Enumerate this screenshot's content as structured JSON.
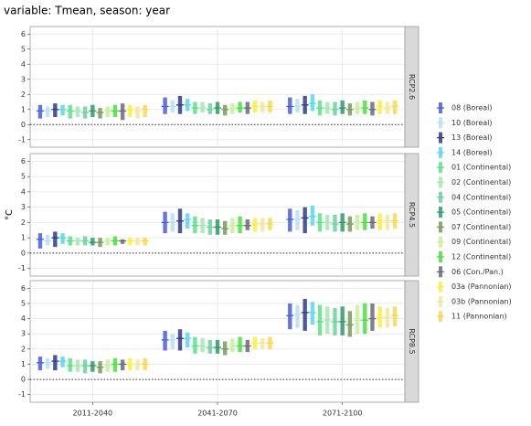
{
  "chart_data": {
    "type": "range",
    "title": "variable: Tmean, season: year",
    "y_label": "°C",
    "categories": [
      "2011-2040",
      "2041-2070",
      "2071-2100"
    ],
    "facets": [
      "RCP2.6",
      "RCP4.5",
      "RCP8.5"
    ],
    "ylim": [
      -1.5,
      6.5
    ],
    "yticks": [
      -1,
      0,
      1,
      2,
      3,
      4,
      5,
      6
    ],
    "hline": 0,
    "grid": true,
    "series": [
      {
        "name": "08 (Boreal)",
        "color": "#4a5fd6",
        "values": [
          [
            [
              0.4,
              1.3,
              0.9
            ],
            [
              0.7,
              1.8,
              1.2
            ],
            [
              0.7,
              1.8,
              1.2
            ]
          ],
          [
            [
              0.3,
              1.3,
              0.9
            ],
            [
              1.3,
              2.7,
              2.0
            ],
            [
              1.4,
              2.9,
              2.2
            ]
          ],
          [
            [
              0.6,
              1.5,
              1.1
            ],
            [
              1.9,
              3.2,
              2.6
            ],
            [
              3.3,
              5.0,
              4.2
            ]
          ]
        ]
      },
      {
        "name": "10 (Boreal)",
        "color": "#b8dff0",
        "values": [
          [
            [
              0.5,
              1.2,
              0.9
            ],
            [
              0.8,
              1.6,
              1.2
            ],
            [
              0.8,
              1.7,
              1.2
            ]
          ],
          [
            [
              0.5,
              1.2,
              0.8
            ],
            [
              1.4,
              2.6,
              2.0
            ],
            [
              1.5,
              2.8,
              2.2
            ]
          ],
          [
            [
              0.7,
              1.4,
              1.1
            ],
            [
              2.0,
              3.0,
              2.6
            ],
            [
              3.4,
              4.9,
              4.3
            ]
          ]
        ]
      },
      {
        "name": "13 (Boreal)",
        "color": "#303a8a",
        "values": [
          [
            [
              0.5,
              1.4,
              1.0
            ],
            [
              0.7,
              1.9,
              1.3
            ],
            [
              0.7,
              1.9,
              1.3
            ]
          ],
          [
            [
              0.4,
              1.4,
              1.0
            ],
            [
              1.3,
              2.9,
              2.1
            ],
            [
              1.3,
              3.0,
              2.3
            ]
          ],
          [
            [
              0.6,
              1.6,
              1.2
            ],
            [
              1.9,
              3.3,
              2.7
            ],
            [
              3.2,
              5.3,
              4.4
            ]
          ]
        ]
      },
      {
        "name": "14 (Boreal)",
        "color": "#5bd6f0",
        "values": [
          [
            [
              0.6,
              1.3,
              1.0
            ],
            [
              0.9,
              1.7,
              1.3
            ],
            [
              0.9,
              2.0,
              1.4
            ]
          ],
          [
            [
              0.6,
              1.3,
              1.0
            ],
            [
              1.6,
              2.6,
              2.2
            ],
            [
              1.8,
              3.1,
              2.4
            ]
          ],
          [
            [
              0.8,
              1.5,
              1.2
            ],
            [
              2.1,
              3.1,
              2.7
            ],
            [
              3.6,
              5.1,
              4.4
            ]
          ]
        ]
      },
      {
        "name": "01 (Continental)",
        "color": "#5ce08a",
        "values": [
          [
            [
              0.4,
              1.3,
              0.9
            ],
            [
              0.7,
              1.5,
              1.1
            ],
            [
              0.6,
              1.6,
              1.1
            ]
          ],
          [
            [
              0.5,
              1.1,
              0.8
            ],
            [
              1.3,
              2.4,
              1.8
            ],
            [
              1.4,
              2.6,
              2.0
            ]
          ],
          [
            [
              0.5,
              1.4,
              0.9
            ],
            [
              1.7,
              2.8,
              2.2
            ],
            [
              2.9,
              4.9,
              3.8
            ]
          ]
        ]
      },
      {
        "name": "02 (Continental)",
        "color": "#a6e8b0",
        "values": [
          [
            [
              0.5,
              1.2,
              0.9
            ],
            [
              0.8,
              1.5,
              1.1
            ],
            [
              0.7,
              1.5,
              1.1
            ]
          ],
          [
            [
              0.5,
              1.0,
              0.8
            ],
            [
              1.3,
              2.3,
              1.8
            ],
            [
              1.5,
              2.5,
              2.0
            ]
          ],
          [
            [
              0.5,
              1.3,
              0.9
            ],
            [
              1.8,
              2.7,
              2.2
            ],
            [
              3.0,
              4.8,
              3.9
            ]
          ]
        ]
      },
      {
        "name": "04 (Continental)",
        "color": "#6fcf9f",
        "values": [
          [
            [
              0.4,
              1.2,
              0.8
            ],
            [
              0.7,
              1.4,
              1.0
            ],
            [
              0.6,
              1.5,
              1.0
            ]
          ],
          [
            [
              0.5,
              1.1,
              0.8
            ],
            [
              1.2,
              2.2,
              1.7
            ],
            [
              1.4,
              2.5,
              1.9
            ]
          ],
          [
            [
              0.4,
              1.3,
              0.9
            ],
            [
              1.7,
              2.6,
              2.1
            ],
            [
              2.9,
              4.7,
              3.8
            ]
          ]
        ]
      },
      {
        "name": "05 (Continental)",
        "color": "#2e9a6a",
        "values": [
          [
            [
              0.5,
              1.3,
              0.9
            ],
            [
              0.7,
              1.5,
              1.1
            ],
            [
              0.7,
              1.6,
              1.1
            ]
          ],
          [
            [
              0.5,
              1.0,
              0.7
            ],
            [
              1.2,
              2.2,
              1.7
            ],
            [
              1.4,
              2.6,
              2.0
            ]
          ],
          [
            [
              0.5,
              1.2,
              0.9
            ],
            [
              1.7,
              2.6,
              2.1
            ],
            [
              2.9,
              4.8,
              3.8
            ]
          ]
        ]
      },
      {
        "name": "07 (Continental)",
        "color": "#7a9a5a",
        "values": [
          [
            [
              0.4,
              1.1,
              0.8
            ],
            [
              0.6,
              1.3,
              1.0
            ],
            [
              0.6,
              1.4,
              1.0
            ]
          ],
          [
            [
              0.4,
              1.0,
              0.7
            ],
            [
              1.2,
              2.1,
              1.6
            ],
            [
              1.4,
              2.4,
              1.9
            ]
          ],
          [
            [
              0.4,
              1.2,
              0.8
            ],
            [
              1.6,
              2.5,
              2.0
            ],
            [
              2.8,
              4.5,
              3.6
            ]
          ]
        ]
      },
      {
        "name": "09 (Continental)",
        "color": "#c6f0a0",
        "values": [
          [
            [
              0.5,
              1.2,
              0.9
            ],
            [
              0.7,
              1.4,
              1.1
            ],
            [
              0.7,
              1.5,
              1.1
            ]
          ],
          [
            [
              0.5,
              1.0,
              0.8
            ],
            [
              1.3,
              2.3,
              1.8
            ],
            [
              1.5,
              2.5,
              2.0
            ]
          ],
          [
            [
              0.5,
              1.3,
              0.9
            ],
            [
              1.8,
              2.7,
              2.2
            ],
            [
              3.0,
              4.9,
              3.9
            ]
          ]
        ]
      },
      {
        "name": "12 (Continental)",
        "color": "#4ae040",
        "values": [
          [
            [
              0.5,
              1.3,
              0.9
            ],
            [
              0.8,
              1.5,
              1.1
            ],
            [
              0.7,
              1.6,
              1.1
            ]
          ],
          [
            [
              0.5,
              1.1,
              0.8
            ],
            [
              1.3,
              2.4,
              1.8
            ],
            [
              1.5,
              2.6,
              2.0
            ]
          ],
          [
            [
              0.5,
              1.4,
              1.0
            ],
            [
              1.8,
              2.8,
              2.2
            ],
            [
              3.0,
              5.0,
              3.9
            ]
          ]
        ]
      },
      {
        "name": "06 (Con./Pan.)",
        "color": "#6a6a7a",
        "values": [
          [
            [
              0.3,
              1.4,
              0.9
            ],
            [
              0.7,
              1.5,
              1.1
            ],
            [
              0.6,
              1.5,
              1.0
            ]
          ],
          [
            [
              0.6,
              0.9,
              0.8
            ],
            [
              1.5,
              2.2,
              1.8
            ],
            [
              1.6,
              2.4,
              2.0
            ]
          ],
          [
            [
              0.6,
              1.3,
              1.0
            ],
            [
              1.8,
              2.6,
              2.2
            ],
            [
              3.2,
              5.0,
              4.0
            ]
          ]
        ]
      },
      {
        "name": "03a (Pannonian)",
        "color": "#f8f040",
        "values": [
          [
            [
              0.5,
              1.3,
              1.0
            ],
            [
              0.8,
              1.6,
              1.2
            ],
            [
              0.7,
              1.6,
              1.2
            ]
          ],
          [
            [
              0.5,
              1.0,
              0.8
            ],
            [
              1.4,
              2.3,
              1.9
            ],
            [
              1.5,
              2.6,
              2.1
            ]
          ],
          [
            [
              0.6,
              1.4,
              1.0
            ],
            [
              2.0,
              2.8,
              2.4
            ],
            [
              3.4,
              4.8,
              4.1
            ]
          ]
        ]
      },
      {
        "name": "03b (Pannonian)",
        "color": "#f0e6a0",
        "values": [
          [
            [
              0.4,
              1.2,
              0.9
            ],
            [
              0.8,
              1.5,
              1.2
            ],
            [
              0.7,
              1.5,
              1.1
            ]
          ],
          [
            [
              0.5,
              1.0,
              0.8
            ],
            [
              1.4,
              2.3,
              1.9
            ],
            [
              1.5,
              2.5,
              2.1
            ]
          ],
          [
            [
              0.6,
              1.3,
              1.0
            ],
            [
              2.0,
              2.7,
              2.4
            ],
            [
              3.4,
              4.7,
              4.1
            ]
          ]
        ]
      },
      {
        "name": "11 (Pannonian)",
        "color": "#f8d850",
        "values": [
          [
            [
              0.5,
              1.3,
              1.0
            ],
            [
              0.8,
              1.6,
              1.2
            ],
            [
              0.7,
              1.6,
              1.2
            ]
          ],
          [
            [
              0.5,
              1.0,
              0.8
            ],
            [
              1.5,
              2.3,
              1.9
            ],
            [
              1.6,
              2.6,
              2.1
            ]
          ],
          [
            [
              0.6,
              1.4,
              1.0
            ],
            [
              2.0,
              2.8,
              2.4
            ],
            [
              3.5,
              4.8,
              4.2
            ]
          ]
        ]
      }
    ]
  }
}
